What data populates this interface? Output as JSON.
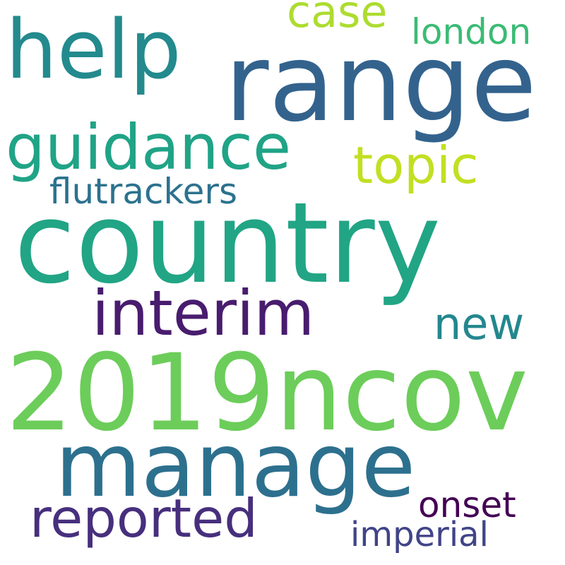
{
  "words": [
    {
      "text": "country",
      "color": "#21a585"
    },
    {
      "text": "2019ncov",
      "color": "#6ccd5a"
    },
    {
      "text": "range",
      "color": "#33638d"
    },
    {
      "text": "manage",
      "color": "#2d708e"
    },
    {
      "text": "help",
      "color": "#238a8d"
    },
    {
      "text": "guidance",
      "color": "#20a386"
    },
    {
      "text": "interim",
      "color": "#481c6e"
    },
    {
      "text": "reported",
      "color": "#472f7d"
    },
    {
      "text": "topic",
      "color": "#c2df23"
    },
    {
      "text": "new",
      "color": "#24878e"
    },
    {
      "text": "case",
      "color": "#addc30"
    },
    {
      "text": "london",
      "color": "#3bbb75"
    },
    {
      "text": "flutrackers",
      "color": "#2c728e"
    },
    {
      "text": "onset",
      "color": "#440154"
    },
    {
      "text": "imperial",
      "color": "#414487"
    }
  ]
}
